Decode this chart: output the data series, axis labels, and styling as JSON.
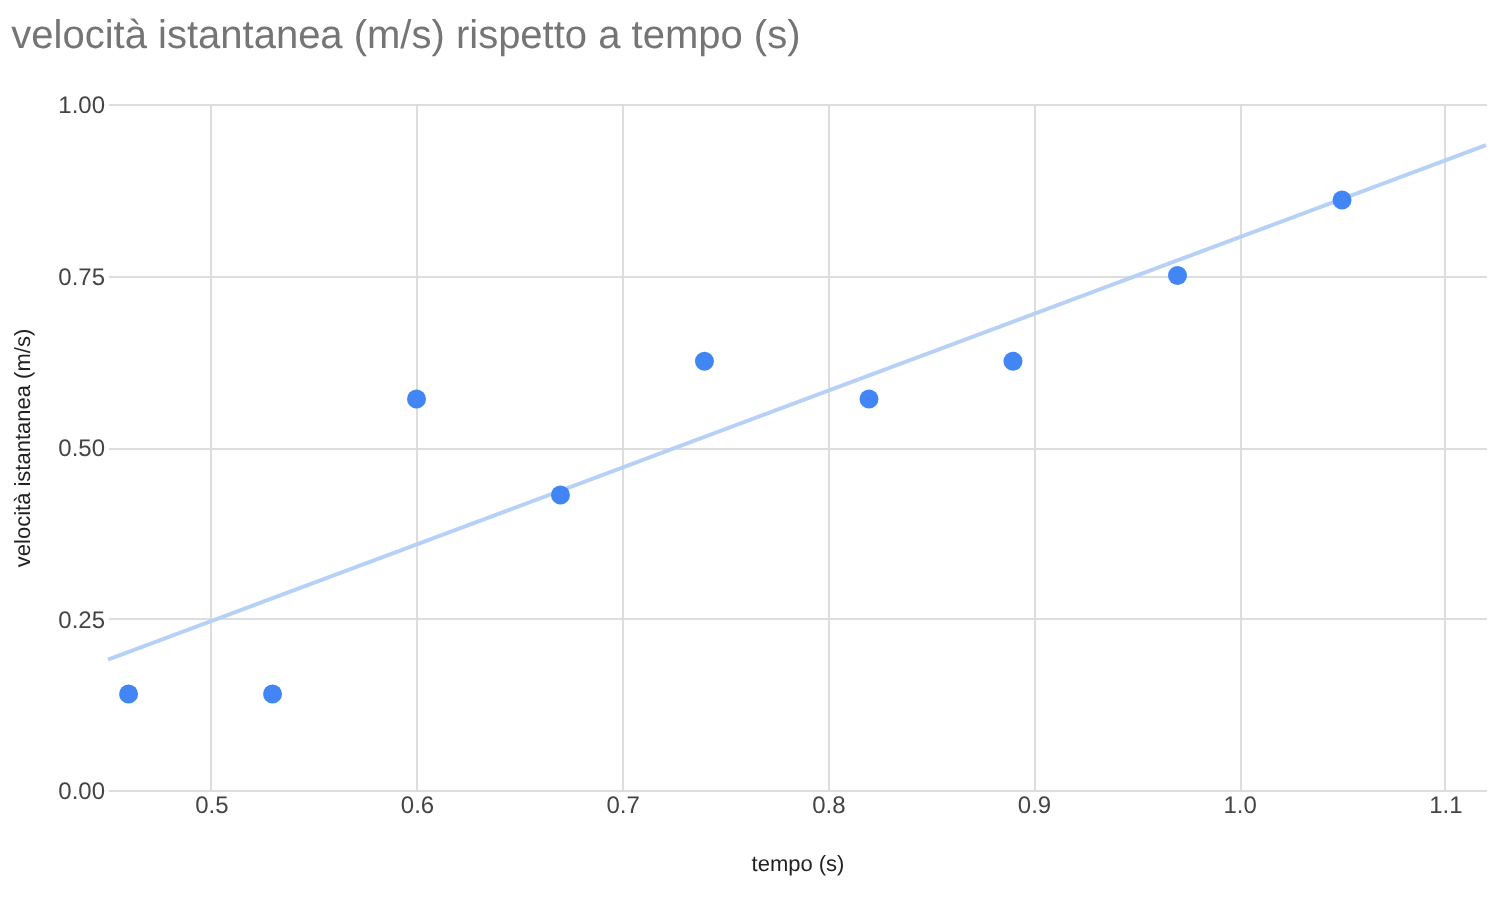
{
  "chart_data": {
    "type": "scatter",
    "title": "velocità istantanea (m/s) rispetto a tempo (s)",
    "xlabel": "tempo (s)",
    "ylabel": "velocità istantanea (m/s)",
    "xlim": [
      0.45,
      1.12
    ],
    "xticks": [
      {
        "value": 0.5,
        "label": "0.5"
      },
      {
        "value": 0.6,
        "label": "0.6"
      },
      {
        "value": 0.7,
        "label": "0.7"
      },
      {
        "value": 0.8,
        "label": "0.8"
      },
      {
        "value": 0.9,
        "label": "0.9"
      },
      {
        "value": 1.0,
        "label": "1.0"
      },
      {
        "value": 1.1,
        "label": "1.1"
      }
    ],
    "ylim": [
      0,
      1
    ],
    "yticks": [
      {
        "value": 0,
        "label": "0.00"
      },
      {
        "value": 0.25,
        "label": "0.25"
      },
      {
        "value": 0.5,
        "label": "0.50"
      },
      {
        "value": 0.75,
        "label": "0.75"
      },
      {
        "value": 1,
        "label": "1.00"
      }
    ],
    "grid": true,
    "series": [
      {
        "color": "#4285f4",
        "marker": "circle",
        "x": [
          0.46,
          0.53,
          0.6,
          0.67,
          0.74,
          0.82,
          0.89,
          0.97,
          1.05
        ],
        "values": [
          0.14,
          0.14,
          0.57,
          0.43,
          0.625,
          0.57,
          0.625,
          0.75,
          0.86
        ]
      },
      {
        "type": "line",
        "marker": "none",
        "color": "#b7d0f8",
        "x": [
          0.45,
          1.12
        ],
        "values": [
          0.19,
          0.94
        ]
      }
    ]
  }
}
